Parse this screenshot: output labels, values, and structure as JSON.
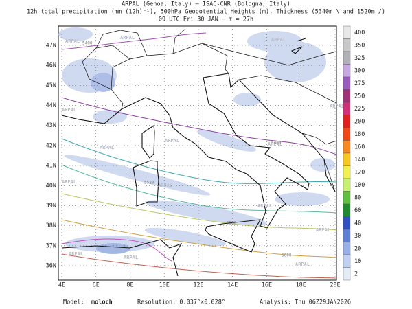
{
  "header": {
    "lines": [
      "ARPAL (Genoa, Italy)  —  ISAC-CNR (Bologna, Italy)",
      "12h total precipitation (mm (12h)⁻¹), 500hPa Geopotential Heights (m), Thickness (5340m \\ and 1520m /)",
      "09 UTC Fri 30 JAN  –  τ = 27h"
    ]
  },
  "map": {
    "lat_labels": [
      "47N",
      "46N",
      "45N",
      "44N",
      "43N",
      "42N",
      "41N",
      "40N",
      "39N",
      "38N",
      "37N",
      "36N"
    ],
    "lon_labels": [
      "4E",
      "6E",
      "8E",
      "10E",
      "12E",
      "14E",
      "16E",
      "18E",
      "20E"
    ],
    "watermark": "ARPAL",
    "contour_labels": [
      "5400",
      "5400",
      "5520",
      "5580",
      "5600"
    ]
  },
  "colorbar": {
    "levels": [
      {
        "label": "400",
        "color": "#e8e8e8"
      },
      {
        "label": "350",
        "color": "#c8c8c8"
      },
      {
        "label": "325",
        "color": "#b0b0b8"
      },
      {
        "label": "300",
        "color": "#c8a8e0"
      },
      {
        "label": "275",
        "color": "#9a5cc0"
      },
      {
        "label": "250",
        "color": "#a03078"
      },
      {
        "label": "225",
        "color": "#d0307a"
      },
      {
        "label": "200",
        "color": "#e02020"
      },
      {
        "label": "180",
        "color": "#f04818"
      },
      {
        "label": "160",
        "color": "#f88820"
      },
      {
        "label": "140",
        "color": "#f8c820"
      },
      {
        "label": "120",
        "color": "#f0f050"
      },
      {
        "label": "100",
        "color": "#c8f070"
      },
      {
        "label": "80",
        "color": "#60c040"
      },
      {
        "label": "60",
        "color": "#208a30"
      },
      {
        "label": "40",
        "color": "#3050c0"
      },
      {
        "label": "30",
        "color": "#6080d8"
      },
      {
        "label": "20",
        "color": "#98b0e8"
      },
      {
        "label": "10",
        "color": "#c0d0f0"
      },
      {
        "label": "2",
        "color": "#e4ecf8"
      }
    ]
  },
  "footer": {
    "model_label": "Model:",
    "model": "moloch",
    "resolution": "Resolution: 0.037°×0.028°",
    "analysis": "Analysis: Thu 06Z29JAN2026"
  }
}
